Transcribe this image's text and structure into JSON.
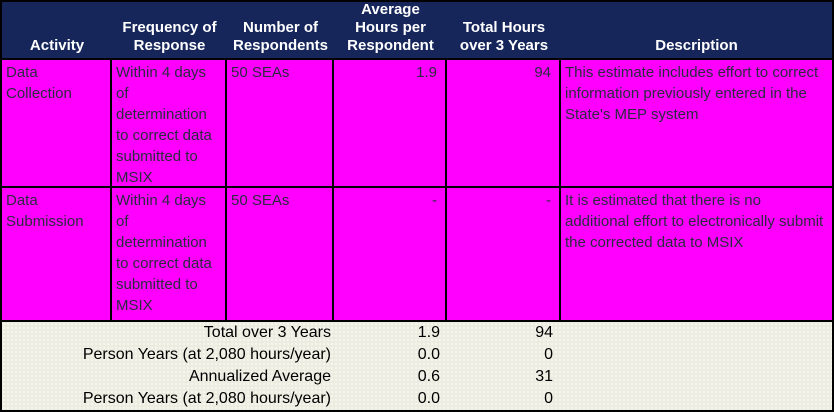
{
  "colors": {
    "header_bg": "#16265b",
    "header_text": "#ffffff",
    "row_bg": "#ff00ff",
    "row_text": "#2b2b40",
    "footer_bg": "#ecece0",
    "border": "#000000"
  },
  "header": {
    "columns": [
      "Activity",
      "Frequency of\nResponse",
      "Number of\nRespondents",
      "Average\nHours per\nRespondent",
      "Total Hours\nover 3 Years",
      "Description"
    ]
  },
  "rows": [
    {
      "activity": "Data Collection",
      "frequency": "Within 4 days of determination to correct data submitted to MSIX",
      "respondents": "50 SEAs",
      "avg_hours": "1.9",
      "total_hours": "94",
      "description": "This estimate includes effort to correct information previously entered in the State's MEP system"
    },
    {
      "activity": "Data Submission",
      "frequency": "Within 4 days of determination to correct data submitted to MSIX",
      "respondents": "50 SEAs",
      "avg_hours": "-",
      "total_hours": "-",
      "description": "It is estimated that there is no additional effort to electronically submit the corrected data to MSIX"
    }
  ],
  "summary": [
    {
      "label": "Total over 3 Years",
      "avg_hours": "1.9",
      "total_hours": "94"
    },
    {
      "label": "Person Years (at 2,080 hours/year)",
      "avg_hours": "0.0",
      "total_hours": "0"
    },
    {
      "label": "Annualized Average",
      "avg_hours": "0.6",
      "total_hours": "31"
    },
    {
      "label": "Person Years (at 2,080 hours/year)",
      "avg_hours": "0.0",
      "total_hours": "0"
    }
  ]
}
